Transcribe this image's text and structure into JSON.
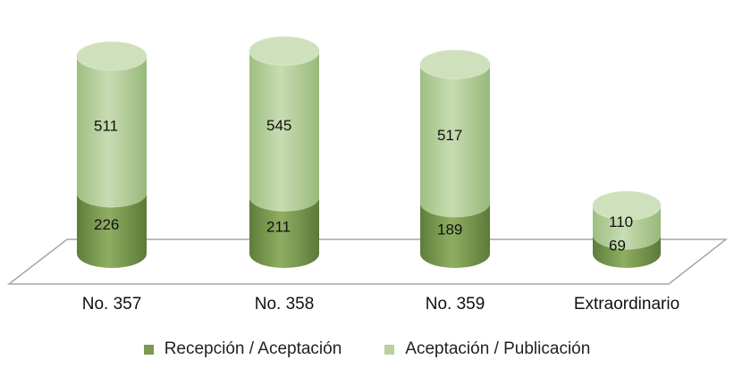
{
  "chart_data": {
    "type": "bar",
    "style": "3d-cylinder-stacked",
    "categories": [
      "No. 357",
      "No. 358",
      "No. 359",
      "Extraordinario"
    ],
    "series": [
      {
        "name": "Recepción / Aceptación",
        "values": [
          226,
          211,
          189,
          69
        ],
        "color": "#7a9a4f"
      },
      {
        "name": "Aceptación / Publicación",
        "values": [
          511,
          545,
          517,
          110
        ],
        "color": "#b9d0a0"
      }
    ],
    "value_labels": [
      [
        "226",
        "211",
        "189",
        "69"
      ],
      [
        "511",
        "545",
        "517",
        "110"
      ]
    ],
    "legend_position": "bottom",
    "grid": false
  }
}
